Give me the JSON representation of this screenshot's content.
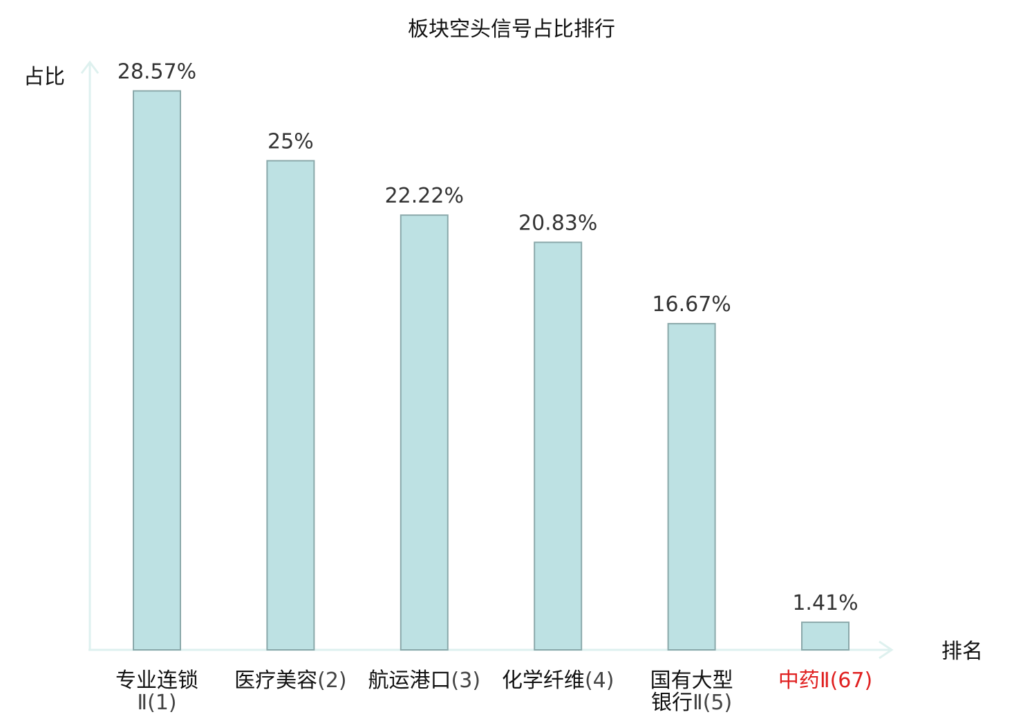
{
  "chart_data": {
    "type": "bar",
    "title": "板块空头信号占比排行",
    "ylabel": "占比",
    "xlabel": "排名",
    "categories": [
      {
        "lines": [
          {
            "cn": "专业连锁",
            "rank": ""
          },
          {
            "cn": "",
            "rank": "Ⅱ(1)"
          }
        ],
        "highlight": false
      },
      {
        "lines": [
          {
            "cn": "医疗美容",
            "rank": "(2)"
          }
        ],
        "highlight": false
      },
      {
        "lines": [
          {
            "cn": "航运港口",
            "rank": "(3)"
          }
        ],
        "highlight": false
      },
      {
        "lines": [
          {
            "cn": "化学纤维",
            "rank": "(4)"
          }
        ],
        "highlight": false
      },
      {
        "lines": [
          {
            "cn": "国有大型",
            "rank": ""
          },
          {
            "cn": "银行",
            "rank": "Ⅱ(5)"
          }
        ],
        "highlight": false
      },
      {
        "lines": [
          {
            "cn": "中药",
            "rank": "Ⅱ(67)"
          }
        ],
        "highlight": true
      }
    ],
    "values": [
      28.57,
      25,
      22.22,
      20.83,
      16.67,
      1.41
    ],
    "value_labels": [
      "28.57%",
      "25%",
      "22.22%",
      "20.83%",
      "16.67%",
      "1.41%"
    ],
    "ylim": [
      0,
      30
    ],
    "grid": false,
    "colors": {
      "bar_fill": "#bde1e3",
      "bar_stroke": "#8aa8aa",
      "axis": "#def1ef",
      "label_text": "#111111",
      "rank_text": "#444444",
      "highlight_text": "#e02020"
    }
  }
}
